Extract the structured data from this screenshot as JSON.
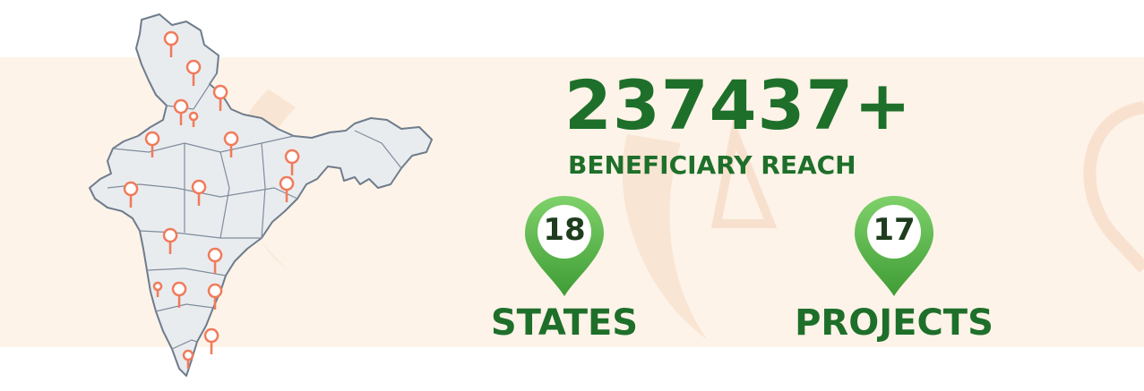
{
  "reach": {
    "value": "237437+",
    "label": "BENEFICIARY REACH"
  },
  "stats": [
    {
      "value": "18",
      "label": "STATES"
    },
    {
      "value": "17",
      "label": "PROJECTS"
    }
  ],
  "icons": {
    "map": "india-map-icon",
    "marker": "location-pin-icon",
    "badge": "green-location-pin-icon"
  },
  "colors": {
    "accent": "#1e6f2a",
    "band": "#fdf3e8",
    "map_fill": "#e9ecef",
    "map_stroke": "#6e7c8c",
    "marker": "#f07b5b",
    "pin_green": "#56b848"
  }
}
